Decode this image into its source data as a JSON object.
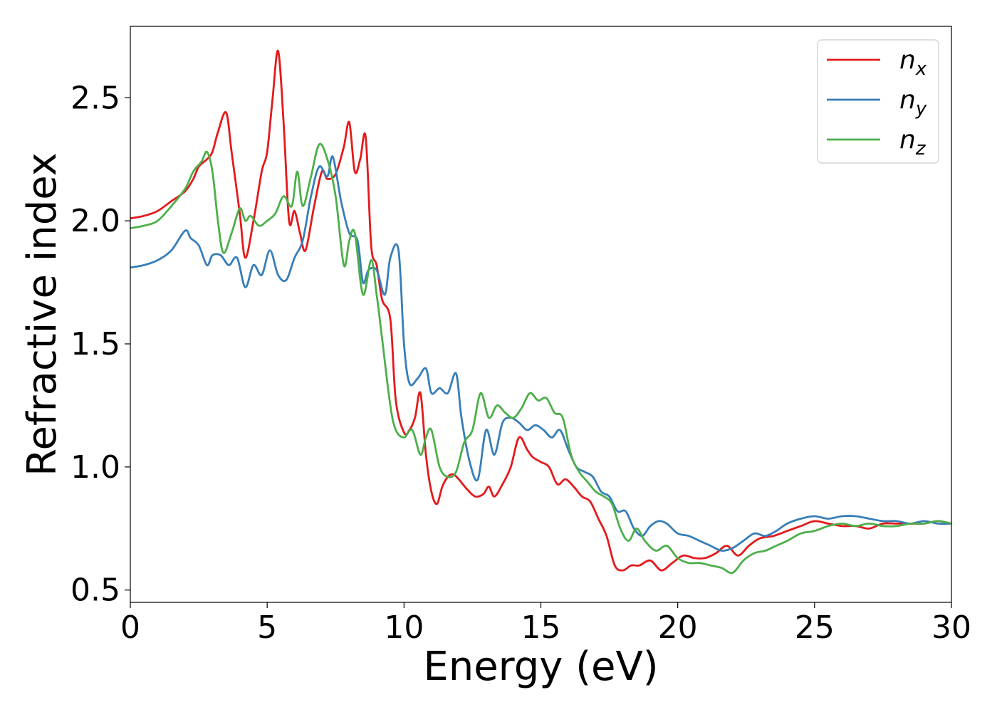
{
  "chart_data": {
    "type": "line",
    "xlabel": "Energy (eV)",
    "ylabel": "Refractive index",
    "xlim": [
      0,
      30
    ],
    "ylim": [
      0.45,
      2.79
    ],
    "xticks": [
      0,
      5,
      10,
      15,
      20,
      25,
      30
    ],
    "xtick_labels": [
      "0",
      "5",
      "10",
      "15",
      "20",
      "25",
      "30"
    ],
    "yticks": [
      0.5,
      1.0,
      1.5,
      2.0,
      2.5
    ],
    "ytick_labels": [
      "0.5",
      "1.0",
      "1.5",
      "2.0",
      "2.5"
    ],
    "grid": false,
    "legend": "top-right",
    "series": [
      {
        "name": "n_x",
        "label_base": "n",
        "label_sub": "x",
        "color": "#e41a1c",
        "x": [
          0,
          0.5,
          1,
          1.5,
          2,
          2.3,
          2.5,
          2.8,
          3,
          3.2,
          3.5,
          3.7,
          4,
          4.2,
          4.5,
          4.8,
          5,
          5.2,
          5.4,
          5.6,
          5.8,
          6,
          6.2,
          6.4,
          6.7,
          7,
          7.2,
          7.5,
          7.8,
          8,
          8.2,
          8.4,
          8.6,
          8.8,
          9,
          9.2,
          9.5,
          9.7,
          10,
          10.2,
          10.4,
          10.6,
          10.8,
          11,
          11.2,
          11.4,
          11.6,
          11.8,
          12,
          12.3,
          12.6,
          12.9,
          13.1,
          13.3,
          13.6,
          13.9,
          14.2,
          14.5,
          14.7,
          15,
          15.3,
          15.6,
          15.9,
          16.2,
          16.5,
          16.8,
          17.1,
          17.4,
          17.7,
          18,
          18.3,
          18.6,
          19,
          19.4,
          19.8,
          20.2,
          20.6,
          21,
          21.4,
          21.8,
          22.2,
          22.6,
          23,
          23.5,
          24,
          24.5,
          25,
          25.5,
          26,
          26.5,
          27,
          27.5,
          28,
          28.5,
          29,
          29.5,
          30
        ],
        "y": [
          2.01,
          2.02,
          2.04,
          2.08,
          2.12,
          2.17,
          2.22,
          2.25,
          2.28,
          2.36,
          2.44,
          2.28,
          2.03,
          1.85,
          2.0,
          2.2,
          2.28,
          2.5,
          2.69,
          2.4,
          2.0,
          2.04,
          1.95,
          1.88,
          2.05,
          2.2,
          2.17,
          2.19,
          2.3,
          2.4,
          2.2,
          2.25,
          2.34,
          1.9,
          1.82,
          1.68,
          1.6,
          1.27,
          1.14,
          1.15,
          1.2,
          1.3,
          1.05,
          0.9,
          0.85,
          0.92,
          0.96,
          0.97,
          0.95,
          0.91,
          0.88,
          0.89,
          0.92,
          0.88,
          0.93,
          1.0,
          1.12,
          1.07,
          1.04,
          1.02,
          1.0,
          0.93,
          0.95,
          0.92,
          0.88,
          0.86,
          0.79,
          0.72,
          0.6,
          0.58,
          0.6,
          0.6,
          0.62,
          0.58,
          0.61,
          0.64,
          0.63,
          0.63,
          0.65,
          0.68,
          0.64,
          0.68,
          0.71,
          0.72,
          0.74,
          0.76,
          0.78,
          0.77,
          0.76,
          0.76,
          0.75,
          0.77,
          0.77,
          0.77,
          0.77,
          0.78,
          0.77
        ],
        "x_min_label": "",
        "x_max_label": ""
      },
      {
        "name": "n_y",
        "label_base": "n",
        "label_sub": "y",
        "color": "#377eb8",
        "x": [
          0,
          0.5,
          1,
          1.5,
          2,
          2.2,
          2.5,
          2.8,
          3,
          3.3,
          3.6,
          3.9,
          4.2,
          4.5,
          4.8,
          5.1,
          5.4,
          5.7,
          6,
          6.3,
          6.6,
          6.9,
          7.2,
          7.4,
          7.7,
          8,
          8.3,
          8.5,
          8.7,
          9,
          9.3,
          9.5,
          9.8,
          10,
          10.2,
          10.5,
          10.8,
          11,
          11.3,
          11.6,
          11.9,
          12.1,
          12.4,
          12.7,
          13,
          13.3,
          13.6,
          13.9,
          14.2,
          14.5,
          14.8,
          15.1,
          15.4,
          15.7,
          16,
          16.3,
          16.6,
          16.9,
          17.2,
          17.5,
          17.8,
          18.1,
          18.4,
          18.7,
          19,
          19.3,
          19.6,
          20,
          20.4,
          20.8,
          21.2,
          21.6,
          22,
          22.4,
          22.8,
          23.2,
          23.6,
          24,
          24.5,
          25,
          25.5,
          26,
          26.5,
          27,
          27.5,
          28,
          28.5,
          29,
          29.5,
          30
        ],
        "y": [
          1.81,
          1.82,
          1.84,
          1.88,
          1.96,
          1.93,
          1.9,
          1.82,
          1.86,
          1.86,
          1.82,
          1.85,
          1.73,
          1.82,
          1.78,
          1.88,
          1.78,
          1.76,
          1.85,
          1.92,
          2.1,
          2.22,
          2.18,
          2.26,
          2.08,
          1.95,
          1.92,
          1.75,
          1.8,
          1.8,
          1.7,
          1.85,
          1.88,
          1.5,
          1.34,
          1.36,
          1.4,
          1.3,
          1.32,
          1.3,
          1.38,
          1.2,
          1.02,
          0.95,
          1.15,
          1.05,
          1.18,
          1.2,
          1.18,
          1.15,
          1.17,
          1.15,
          1.12,
          1.15,
          1.07,
          1.0,
          0.98,
          0.96,
          0.9,
          0.88,
          0.82,
          0.82,
          0.75,
          0.72,
          0.76,
          0.78,
          0.77,
          0.73,
          0.72,
          0.7,
          0.68,
          0.66,
          0.67,
          0.7,
          0.73,
          0.72,
          0.74,
          0.77,
          0.79,
          0.8,
          0.79,
          0.8,
          0.8,
          0.79,
          0.78,
          0.78,
          0.77,
          0.78,
          0.77,
          0.77
        ],
        "x_min_label": "",
        "x_max_label": ""
      },
      {
        "name": "n_z",
        "label_base": "n",
        "label_sub": "z",
        "color": "#4daf4a",
        "x": [
          0,
          0.5,
          1,
          1.5,
          2,
          2.3,
          2.6,
          2.8,
          3,
          3.2,
          3.4,
          3.7,
          4,
          4.2,
          4.4,
          4.7,
          5,
          5.3,
          5.6,
          5.9,
          6.1,
          6.3,
          6.6,
          6.9,
          7.2,
          7.5,
          7.8,
          8,
          8.2,
          8.5,
          8.8,
          9,
          9.2,
          9.5,
          9.7,
          10,
          10.3,
          10.6,
          10.8,
          11,
          11.3,
          11.6,
          11.9,
          12.2,
          12.5,
          12.8,
          13.1,
          13.4,
          13.7,
          14,
          14.3,
          14.6,
          14.9,
          15.2,
          15.5,
          15.8,
          16.1,
          16.4,
          16.7,
          17,
          17.3,
          17.6,
          17.9,
          18.2,
          18.5,
          18.8,
          19.2,
          19.6,
          20,
          20.4,
          20.8,
          21.2,
          21.6,
          22,
          22.4,
          22.8,
          23.2,
          23.6,
          24,
          24.5,
          25,
          25.5,
          26,
          26.5,
          27,
          27.5,
          28,
          28.5,
          29,
          29.5,
          30
        ],
        "y": [
          1.97,
          1.98,
          2.0,
          2.06,
          2.13,
          2.2,
          2.24,
          2.28,
          2.2,
          2.0,
          1.87,
          1.95,
          2.05,
          2.0,
          2.02,
          1.98,
          2.0,
          2.03,
          2.1,
          2.06,
          2.2,
          2.06,
          2.18,
          2.31,
          2.25,
          2.1,
          1.82,
          1.92,
          1.95,
          1.7,
          1.84,
          1.7,
          1.52,
          1.25,
          1.15,
          1.12,
          1.15,
          1.05,
          1.12,
          1.15,
          1.0,
          0.96,
          0.98,
          1.1,
          1.15,
          1.3,
          1.2,
          1.25,
          1.22,
          1.2,
          1.24,
          1.3,
          1.27,
          1.28,
          1.22,
          1.2,
          1.05,
          0.98,
          0.94,
          0.9,
          0.88,
          0.85,
          0.75,
          0.7,
          0.75,
          0.7,
          0.66,
          0.68,
          0.63,
          0.61,
          0.61,
          0.6,
          0.59,
          0.57,
          0.62,
          0.65,
          0.66,
          0.68,
          0.7,
          0.73,
          0.74,
          0.76,
          0.77,
          0.76,
          0.77,
          0.76,
          0.76,
          0.77,
          0.77,
          0.78,
          0.77
        ]
      }
    ]
  }
}
